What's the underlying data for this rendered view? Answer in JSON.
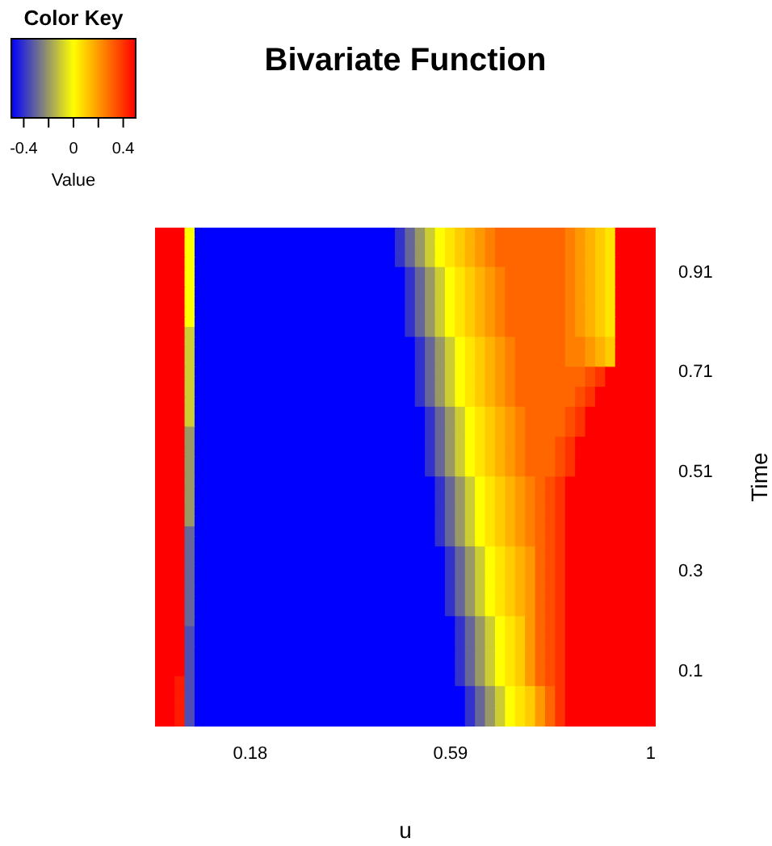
{
  "chart_data": {
    "type": "heatmap",
    "title": "Bivariate Function",
    "xlabel": "u",
    "ylabel": "Time",
    "legend_title": "Color Key",
    "clabel": "Value",
    "clim": [
      -0.5,
      0.5
    ],
    "cticks": [
      -0.4,
      {
        "value": -0.2,
        "label": null
      },
      0,
      {
        "value": 0.2,
        "label": null
      },
      0.4
    ],
    "categories": [
      null,
      null,
      null,
      null,
      null,
      null,
      null,
      null,
      null,
      "0.18",
      null,
      null,
      null,
      null,
      null,
      null,
      null,
      null,
      null,
      null,
      null,
      null,
      null,
      null,
      null,
      null,
      null,
      null,
      null,
      "0.59",
      null,
      null,
      null,
      null,
      null,
      null,
      null,
      null,
      null,
      null,
      null,
      null,
      null,
      null,
      null,
      null,
      null,
      null,
      null,
      "1"
    ],
    "y_categories": [
      null,
      null,
      null,
      null,
      "0.91",
      null,
      null,
      null,
      null,
      null,
      null,
      null,
      null,
      null,
      "0.71",
      null,
      null,
      null,
      null,
      null,
      null,
      null,
      null,
      null,
      "0.51",
      null,
      null,
      null,
      null,
      null,
      null,
      null,
      null,
      null,
      "0.3",
      null,
      null,
      null,
      null,
      null,
      null,
      null,
      null,
      null,
      "0.1",
      null,
      null,
      null,
      null,
      null
    ],
    "cells": [
      [
        0.5,
        0.5,
        0.5,
        0,
        -0.5,
        -0.5,
        -0.5,
        -0.5,
        -0.5,
        -0.5,
        -0.5,
        -0.5,
        -0.5,
        -0.5,
        -0.5,
        -0.5,
        -0.5,
        -0.5,
        -0.5,
        -0.5,
        -0.5,
        -0.5,
        -0.5,
        -0.5,
        -0.4,
        -0.3,
        -0.2,
        -0.1,
        0,
        0.05,
        0.1,
        0.15,
        0.2,
        0.25,
        0.3,
        0.3,
        0.3,
        0.3,
        0.3,
        0.3,
        0.3,
        0.25,
        0.2,
        0.15,
        0.1,
        0.05,
        0.5,
        0.5,
        0.5,
        0.5
      ],
      [
        0.5,
        0.5,
        0.5,
        0,
        -0.5,
        -0.5,
        -0.5,
        -0.5,
        -0.5,
        -0.5,
        -0.5,
        -0.5,
        -0.5,
        -0.5,
        -0.5,
        -0.5,
        -0.5,
        -0.5,
        -0.5,
        -0.5,
        -0.5,
        -0.5,
        -0.5,
        -0.5,
        -0.4,
        -0.3,
        -0.2,
        -0.1,
        0,
        0.05,
        0.1,
        0.15,
        0.2,
        0.25,
        0.3,
        0.3,
        0.3,
        0.3,
        0.3,
        0.3,
        0.3,
        0.25,
        0.2,
        0.15,
        0.1,
        0.05,
        0.5,
        0.5,
        0.5,
        0.5
      ],
      [
        0.5,
        0.5,
        0.5,
        0,
        -0.5,
        -0.5,
        -0.5,
        -0.5,
        -0.5,
        -0.5,
        -0.5,
        -0.5,
        -0.5,
        -0.5,
        -0.5,
        -0.5,
        -0.5,
        -0.5,
        -0.5,
        -0.5,
        -0.5,
        -0.5,
        -0.5,
        -0.5,
        -0.4,
        -0.3,
        -0.2,
        -0.1,
        0,
        0.05,
        0.1,
        0.15,
        0.2,
        0.25,
        0.3,
        0.3,
        0.3,
        0.3,
        0.3,
        0.3,
        0.3,
        0.25,
        0.2,
        0.15,
        0.1,
        0.05,
        0.5,
        0.5,
        0.5,
        0.5
      ],
      [
        0.5,
        0.5,
        0.5,
        0,
        -0.5,
        -0.5,
        -0.5,
        -0.5,
        -0.5,
        -0.5,
        -0.5,
        -0.5,
        -0.5,
        -0.5,
        -0.5,
        -0.5,
        -0.5,
        -0.5,
        -0.5,
        -0.5,
        -0.5,
        -0.5,
        -0.5,
        -0.5,
        -0.4,
        -0.3,
        -0.2,
        -0.1,
        0,
        0.05,
        0.1,
        0.15,
        0.2,
        0.25,
        0.3,
        0.3,
        0.3,
        0.3,
        0.3,
        0.3,
        0.3,
        0.25,
        0.2,
        0.15,
        0.1,
        0.05,
        0.5,
        0.5,
        0.5,
        0.5
      ],
      [
        0.5,
        0.5,
        0.5,
        0,
        -0.5,
        -0.5,
        -0.5,
        -0.5,
        -0.5,
        -0.5,
        -0.5,
        -0.5,
        -0.5,
        -0.5,
        -0.5,
        -0.5,
        -0.5,
        -0.5,
        -0.5,
        -0.5,
        -0.5,
        -0.5,
        -0.5,
        -0.5,
        -0.5,
        -0.4,
        -0.3,
        -0.2,
        -0.1,
        0,
        0.05,
        0.1,
        0.15,
        0.2,
        0.25,
        0.3,
        0.3,
        0.3,
        0.3,
        0.3,
        0.3,
        0.25,
        0.2,
        0.15,
        0.1,
        0.05,
        0.5,
        0.5,
        0.5,
        0.5
      ],
      [
        0.5,
        0.5,
        0.5,
        0,
        -0.5,
        -0.5,
        -0.5,
        -0.5,
        -0.5,
        -0.5,
        -0.5,
        -0.5,
        -0.5,
        -0.5,
        -0.5,
        -0.5,
        -0.5,
        -0.5,
        -0.5,
        -0.5,
        -0.5,
        -0.5,
        -0.5,
        -0.5,
        -0.5,
        -0.4,
        -0.3,
        -0.2,
        -0.1,
        0,
        0.05,
        0.1,
        0.15,
        0.2,
        0.25,
        0.3,
        0.3,
        0.3,
        0.3,
        0.3,
        0.3,
        0.25,
        0.2,
        0.15,
        0.1,
        0.05,
        0.5,
        0.5,
        0.5,
        0.5
      ],
      [
        0.5,
        0.5,
        0.5,
        0,
        -0.5,
        -0.5,
        -0.5,
        -0.5,
        -0.5,
        -0.5,
        -0.5,
        -0.5,
        -0.5,
        -0.5,
        -0.5,
        -0.5,
        -0.5,
        -0.5,
        -0.5,
        -0.5,
        -0.5,
        -0.5,
        -0.5,
        -0.5,
        -0.5,
        -0.4,
        -0.3,
        -0.2,
        -0.1,
        0,
        0.05,
        0.1,
        0.15,
        0.2,
        0.25,
        0.3,
        0.3,
        0.3,
        0.3,
        0.3,
        0.3,
        0.25,
        0.2,
        0.15,
        0.1,
        0.05,
        0.5,
        0.5,
        0.5,
        0.5
      ],
      [
        0.5,
        0.5,
        0.5,
        0,
        -0.5,
        -0.5,
        -0.5,
        -0.5,
        -0.5,
        -0.5,
        -0.5,
        -0.5,
        -0.5,
        -0.5,
        -0.5,
        -0.5,
        -0.5,
        -0.5,
        -0.5,
        -0.5,
        -0.5,
        -0.5,
        -0.5,
        -0.5,
        -0.5,
        -0.4,
        -0.3,
        -0.2,
        -0.1,
        0,
        0.05,
        0.1,
        0.15,
        0.2,
        0.25,
        0.3,
        0.3,
        0.3,
        0.3,
        0.3,
        0.3,
        0.25,
        0.2,
        0.15,
        0.1,
        0.05,
        0.5,
        0.5,
        0.5,
        0.5
      ],
      [
        0.5,
        0.5,
        0.5,
        0,
        -0.5,
        -0.5,
        -0.5,
        -0.5,
        -0.5,
        -0.5,
        -0.5,
        -0.5,
        -0.5,
        -0.5,
        -0.5,
        -0.5,
        -0.5,
        -0.5,
        -0.5,
        -0.5,
        -0.5,
        -0.5,
        -0.5,
        -0.5,
        -0.5,
        -0.4,
        -0.3,
        -0.2,
        -0.1,
        0,
        0.05,
        0.1,
        0.15,
        0.2,
        0.25,
        0.3,
        0.3,
        0.3,
        0.3,
        0.3,
        0.3,
        0.25,
        0.2,
        0.15,
        0.1,
        0.05,
        0.5,
        0.5,
        0.5,
        0.5
      ],
      [
        0.5,
        0.5,
        0.5,
        0,
        -0.5,
        -0.5,
        -0.5,
        -0.5,
        -0.5,
        -0.5,
        -0.5,
        -0.5,
        -0.5,
        -0.5,
        -0.5,
        -0.5,
        -0.5,
        -0.5,
        -0.5,
        -0.5,
        -0.5,
        -0.5,
        -0.5,
        -0.5,
        -0.5,
        -0.4,
        -0.3,
        -0.2,
        -0.1,
        0,
        0.05,
        0.1,
        0.15,
        0.2,
        0.25,
        0.3,
        0.3,
        0.3,
        0.3,
        0.3,
        0.3,
        0.25,
        0.2,
        0.15,
        0.1,
        0.05,
        0.5,
        0.5,
        0.5,
        0.5
      ],
      [
        0.5,
        0.5,
        0.5,
        -0.1,
        -0.5,
        -0.5,
        -0.5,
        -0.5,
        -0.5,
        -0.5,
        -0.5,
        -0.5,
        -0.5,
        -0.5,
        -0.5,
        -0.5,
        -0.5,
        -0.5,
        -0.5,
        -0.5,
        -0.5,
        -0.5,
        -0.5,
        -0.5,
        -0.5,
        -0.4,
        -0.3,
        -0.2,
        -0.1,
        0,
        0.05,
        0.1,
        0.15,
        0.2,
        0.25,
        0.3,
        0.3,
        0.3,
        0.3,
        0.3,
        0.3,
        0.25,
        0.2,
        0.15,
        0.1,
        0.05,
        0.5,
        0.5,
        0.5,
        0.5
      ],
      [
        0.5,
        0.5,
        0.5,
        -0.1,
        -0.5,
        -0.5,
        -0.5,
        -0.5,
        -0.5,
        -0.5,
        -0.5,
        -0.5,
        -0.5,
        -0.5,
        -0.5,
        -0.5,
        -0.5,
        -0.5,
        -0.5,
        -0.5,
        -0.5,
        -0.5,
        -0.5,
        -0.5,
        -0.5,
        -0.5,
        -0.4,
        -0.3,
        -0.2,
        -0.1,
        0,
        0.05,
        0.1,
        0.15,
        0.2,
        0.25,
        0.3,
        0.3,
        0.3,
        0.3,
        0.3,
        0.25,
        0.25,
        0.2,
        0.15,
        0.1,
        0.5,
        0.5,
        0.5,
        0.5
      ],
      [
        0.5,
        0.5,
        0.5,
        -0.1,
        -0.5,
        -0.5,
        -0.5,
        -0.5,
        -0.5,
        -0.5,
        -0.5,
        -0.5,
        -0.5,
        -0.5,
        -0.5,
        -0.5,
        -0.5,
        -0.5,
        -0.5,
        -0.5,
        -0.5,
        -0.5,
        -0.5,
        -0.5,
        -0.5,
        -0.5,
        -0.4,
        -0.3,
        -0.2,
        -0.1,
        0,
        0.05,
        0.1,
        0.15,
        0.2,
        0.25,
        0.3,
        0.3,
        0.3,
        0.3,
        0.3,
        0.25,
        0.25,
        0.2,
        0.15,
        0.1,
        0.5,
        0.5,
        0.5,
        0.5
      ],
      [
        0.5,
        0.5,
        0.5,
        -0.1,
        -0.5,
        -0.5,
        -0.5,
        -0.5,
        -0.5,
        -0.5,
        -0.5,
        -0.5,
        -0.5,
        -0.5,
        -0.5,
        -0.5,
        -0.5,
        -0.5,
        -0.5,
        -0.5,
        -0.5,
        -0.5,
        -0.5,
        -0.5,
        -0.5,
        -0.5,
        -0.4,
        -0.3,
        -0.2,
        -0.1,
        0,
        0.05,
        0.1,
        0.15,
        0.2,
        0.25,
        0.3,
        0.3,
        0.3,
        0.3,
        0.3,
        0.25,
        0.25,
        0.2,
        0.15,
        0.1,
        0.5,
        0.5,
        0.5,
        0.5
      ],
      [
        0.5,
        0.5,
        0.5,
        -0.1,
        -0.5,
        -0.5,
        -0.5,
        -0.5,
        -0.5,
        -0.5,
        -0.5,
        -0.5,
        -0.5,
        -0.5,
        -0.5,
        -0.5,
        -0.5,
        -0.5,
        -0.5,
        -0.5,
        -0.5,
        -0.5,
        -0.5,
        -0.5,
        -0.5,
        -0.5,
        -0.4,
        -0.3,
        -0.2,
        -0.1,
        0,
        0.05,
        0.1,
        0.15,
        0.2,
        0.25,
        0.3,
        0.3,
        0.3,
        0.3,
        0.3,
        0.3,
        0.3,
        0.35,
        0.4,
        0.5,
        0.5,
        0.5,
        0.5,
        0.5
      ],
      [
        0.5,
        0.5,
        0.5,
        -0.1,
        -0.5,
        -0.5,
        -0.5,
        -0.5,
        -0.5,
        -0.5,
        -0.5,
        -0.5,
        -0.5,
        -0.5,
        -0.5,
        -0.5,
        -0.5,
        -0.5,
        -0.5,
        -0.5,
        -0.5,
        -0.5,
        -0.5,
        -0.5,
        -0.5,
        -0.5,
        -0.4,
        -0.3,
        -0.2,
        -0.1,
        0,
        0.05,
        0.1,
        0.15,
        0.2,
        0.25,
        0.3,
        0.3,
        0.3,
        0.3,
        0.3,
        0.3,
        0.3,
        0.35,
        0.4,
        0.5,
        0.5,
        0.5,
        0.5,
        0.5
      ],
      [
        0.5,
        0.5,
        0.5,
        -0.1,
        -0.5,
        -0.5,
        -0.5,
        -0.5,
        -0.5,
        -0.5,
        -0.5,
        -0.5,
        -0.5,
        -0.5,
        -0.5,
        -0.5,
        -0.5,
        -0.5,
        -0.5,
        -0.5,
        -0.5,
        -0.5,
        -0.5,
        -0.5,
        -0.5,
        -0.5,
        -0.4,
        -0.3,
        -0.2,
        -0.1,
        0,
        0.05,
        0.1,
        0.15,
        0.2,
        0.25,
        0.3,
        0.3,
        0.3,
        0.3,
        0.3,
        0.3,
        0.35,
        0.4,
        0.5,
        0.5,
        0.5,
        0.5,
        0.5,
        0.5
      ],
      [
        0.5,
        0.5,
        0.5,
        -0.1,
        -0.5,
        -0.5,
        -0.5,
        -0.5,
        -0.5,
        -0.5,
        -0.5,
        -0.5,
        -0.5,
        -0.5,
        -0.5,
        -0.5,
        -0.5,
        -0.5,
        -0.5,
        -0.5,
        -0.5,
        -0.5,
        -0.5,
        -0.5,
        -0.5,
        -0.5,
        -0.4,
        -0.3,
        -0.2,
        -0.1,
        0,
        0.05,
        0.1,
        0.15,
        0.2,
        0.25,
        0.3,
        0.3,
        0.3,
        0.3,
        0.3,
        0.3,
        0.35,
        0.4,
        0.5,
        0.5,
        0.5,
        0.5,
        0.5,
        0.5
      ],
      [
        0.5,
        0.5,
        0.5,
        -0.1,
        -0.5,
        -0.5,
        -0.5,
        -0.5,
        -0.5,
        -0.5,
        -0.5,
        -0.5,
        -0.5,
        -0.5,
        -0.5,
        -0.5,
        -0.5,
        -0.5,
        -0.5,
        -0.5,
        -0.5,
        -0.5,
        -0.5,
        -0.5,
        -0.5,
        -0.5,
        -0.5,
        -0.4,
        -0.3,
        -0.2,
        -0.1,
        0,
        0.05,
        0.1,
        0.15,
        0.2,
        0.25,
        0.3,
        0.3,
        0.3,
        0.3,
        0.35,
        0.4,
        0.5,
        0.5,
        0.5,
        0.5,
        0.5,
        0.5,
        0.5
      ],
      [
        0.5,
        0.5,
        0.5,
        -0.1,
        -0.5,
        -0.5,
        -0.5,
        -0.5,
        -0.5,
        -0.5,
        -0.5,
        -0.5,
        -0.5,
        -0.5,
        -0.5,
        -0.5,
        -0.5,
        -0.5,
        -0.5,
        -0.5,
        -0.5,
        -0.5,
        -0.5,
        -0.5,
        -0.5,
        -0.5,
        -0.5,
        -0.4,
        -0.3,
        -0.2,
        -0.1,
        0,
        0.05,
        0.1,
        0.15,
        0.2,
        0.25,
        0.3,
        0.3,
        0.3,
        0.3,
        0.35,
        0.4,
        0.5,
        0.5,
        0.5,
        0.5,
        0.5,
        0.5,
        0.5
      ],
      [
        0.5,
        0.5,
        0.5,
        -0.2,
        -0.5,
        -0.5,
        -0.5,
        -0.5,
        -0.5,
        -0.5,
        -0.5,
        -0.5,
        -0.5,
        -0.5,
        -0.5,
        -0.5,
        -0.5,
        -0.5,
        -0.5,
        -0.5,
        -0.5,
        -0.5,
        -0.5,
        -0.5,
        -0.5,
        -0.5,
        -0.5,
        -0.4,
        -0.3,
        -0.2,
        -0.1,
        0,
        0.05,
        0.1,
        0.15,
        0.2,
        0.25,
        0.3,
        0.3,
        0.3,
        0.3,
        0.35,
        0.4,
        0.5,
        0.5,
        0.5,
        0.5,
        0.5,
        0.5,
        0.5
      ],
      [
        0.5,
        0.5,
        0.5,
        -0.2,
        -0.5,
        -0.5,
        -0.5,
        -0.5,
        -0.5,
        -0.5,
        -0.5,
        -0.5,
        -0.5,
        -0.5,
        -0.5,
        -0.5,
        -0.5,
        -0.5,
        -0.5,
        -0.5,
        -0.5,
        -0.5,
        -0.5,
        -0.5,
        -0.5,
        -0.5,
        -0.5,
        -0.4,
        -0.3,
        -0.2,
        -0.1,
        0,
        0.05,
        0.1,
        0.15,
        0.2,
        0.25,
        0.3,
        0.3,
        0.3,
        0.35,
        0.4,
        0.5,
        0.5,
        0.5,
        0.5,
        0.5,
        0.5,
        0.5,
        0.5
      ],
      [
        0.5,
        0.5,
        0.5,
        -0.2,
        -0.5,
        -0.5,
        -0.5,
        -0.5,
        -0.5,
        -0.5,
        -0.5,
        -0.5,
        -0.5,
        -0.5,
        -0.5,
        -0.5,
        -0.5,
        -0.5,
        -0.5,
        -0.5,
        -0.5,
        -0.5,
        -0.5,
        -0.5,
        -0.5,
        -0.5,
        -0.5,
        -0.4,
        -0.3,
        -0.2,
        -0.1,
        0,
        0.05,
        0.1,
        0.15,
        0.2,
        0.25,
        0.3,
        0.3,
        0.3,
        0.35,
        0.4,
        0.5,
        0.5,
        0.5,
        0.5,
        0.5,
        0.5,
        0.5,
        0.5
      ],
      [
        0.5,
        0.5,
        0.5,
        -0.2,
        -0.5,
        -0.5,
        -0.5,
        -0.5,
        -0.5,
        -0.5,
        -0.5,
        -0.5,
        -0.5,
        -0.5,
        -0.5,
        -0.5,
        -0.5,
        -0.5,
        -0.5,
        -0.5,
        -0.5,
        -0.5,
        -0.5,
        -0.5,
        -0.5,
        -0.5,
        -0.5,
        -0.4,
        -0.3,
        -0.2,
        -0.1,
        0,
        0.05,
        0.1,
        0.15,
        0.2,
        0.25,
        0.3,
        0.3,
        0.3,
        0.35,
        0.4,
        0.5,
        0.5,
        0.5,
        0.5,
        0.5,
        0.5,
        0.5,
        0.5
      ],
      [
        0.5,
        0.5,
        0.5,
        -0.2,
        -0.5,
        -0.5,
        -0.5,
        -0.5,
        -0.5,
        -0.5,
        -0.5,
        -0.5,
        -0.5,
        -0.5,
        -0.5,
        -0.5,
        -0.5,
        -0.5,
        -0.5,
        -0.5,
        -0.5,
        -0.5,
        -0.5,
        -0.5,
        -0.5,
        -0.5,
        -0.5,
        -0.4,
        -0.3,
        -0.2,
        -0.1,
        0,
        0.05,
        0.1,
        0.15,
        0.2,
        0.25,
        0.3,
        0.3,
        0.3,
        0.35,
        0.4,
        0.5,
        0.5,
        0.5,
        0.5,
        0.5,
        0.5,
        0.5,
        0.5
      ],
      [
        0.5,
        0.5,
        0.5,
        -0.2,
        -0.5,
        -0.5,
        -0.5,
        -0.5,
        -0.5,
        -0.5,
        -0.5,
        -0.5,
        -0.5,
        -0.5,
        -0.5,
        -0.5,
        -0.5,
        -0.5,
        -0.5,
        -0.5,
        -0.5,
        -0.5,
        -0.5,
        -0.5,
        -0.5,
        -0.5,
        -0.5,
        -0.5,
        -0.4,
        -0.3,
        -0.2,
        -0.1,
        0,
        0.05,
        0.1,
        0.15,
        0.2,
        0.25,
        0.3,
        0.35,
        0.4,
        0.5,
        0.5,
        0.5,
        0.5,
        0.5,
        0.5,
        0.5,
        0.5,
        0.5
      ],
      [
        0.5,
        0.5,
        0.5,
        -0.2,
        -0.5,
        -0.5,
        -0.5,
        -0.5,
        -0.5,
        -0.5,
        -0.5,
        -0.5,
        -0.5,
        -0.5,
        -0.5,
        -0.5,
        -0.5,
        -0.5,
        -0.5,
        -0.5,
        -0.5,
        -0.5,
        -0.5,
        -0.5,
        -0.5,
        -0.5,
        -0.5,
        -0.5,
        -0.4,
        -0.3,
        -0.2,
        -0.1,
        0,
        0.05,
        0.1,
        0.15,
        0.2,
        0.25,
        0.3,
        0.35,
        0.4,
        0.5,
        0.5,
        0.5,
        0.5,
        0.5,
        0.5,
        0.5,
        0.5,
        0.5
      ],
      [
        0.5,
        0.5,
        0.5,
        -0.2,
        -0.5,
        -0.5,
        -0.5,
        -0.5,
        -0.5,
        -0.5,
        -0.5,
        -0.5,
        -0.5,
        -0.5,
        -0.5,
        -0.5,
        -0.5,
        -0.5,
        -0.5,
        -0.5,
        -0.5,
        -0.5,
        -0.5,
        -0.5,
        -0.5,
        -0.5,
        -0.5,
        -0.5,
        -0.4,
        -0.3,
        -0.2,
        -0.1,
        0,
        0.05,
        0.1,
        0.15,
        0.2,
        0.25,
        0.3,
        0.35,
        0.4,
        0.5,
        0.5,
        0.5,
        0.5,
        0.5,
        0.5,
        0.5,
        0.5,
        0.5
      ],
      [
        0.5,
        0.5,
        0.5,
        -0.2,
        -0.5,
        -0.5,
        -0.5,
        -0.5,
        -0.5,
        -0.5,
        -0.5,
        -0.5,
        -0.5,
        -0.5,
        -0.5,
        -0.5,
        -0.5,
        -0.5,
        -0.5,
        -0.5,
        -0.5,
        -0.5,
        -0.5,
        -0.5,
        -0.5,
        -0.5,
        -0.5,
        -0.5,
        -0.4,
        -0.3,
        -0.2,
        -0.1,
        0,
        0.05,
        0.1,
        0.15,
        0.2,
        0.25,
        0.3,
        0.35,
        0.4,
        0.5,
        0.5,
        0.5,
        0.5,
        0.5,
        0.5,
        0.5,
        0.5,
        0.5
      ],
      [
        0.5,
        0.5,
        0.5,
        -0.2,
        -0.5,
        -0.5,
        -0.5,
        -0.5,
        -0.5,
        -0.5,
        -0.5,
        -0.5,
        -0.5,
        -0.5,
        -0.5,
        -0.5,
        -0.5,
        -0.5,
        -0.5,
        -0.5,
        -0.5,
        -0.5,
        -0.5,
        -0.5,
        -0.5,
        -0.5,
        -0.5,
        -0.5,
        -0.4,
        -0.3,
        -0.2,
        -0.1,
        0,
        0.05,
        0.1,
        0.15,
        0.2,
        0.25,
        0.3,
        0.35,
        0.4,
        0.5,
        0.5,
        0.5,
        0.5,
        0.5,
        0.5,
        0.5,
        0.5,
        0.5
      ],
      [
        0.5,
        0.5,
        0.5,
        -0.3,
        -0.5,
        -0.5,
        -0.5,
        -0.5,
        -0.5,
        -0.5,
        -0.5,
        -0.5,
        -0.5,
        -0.5,
        -0.5,
        -0.5,
        -0.5,
        -0.5,
        -0.5,
        -0.5,
        -0.5,
        -0.5,
        -0.5,
        -0.5,
        -0.5,
        -0.5,
        -0.5,
        -0.5,
        -0.4,
        -0.3,
        -0.2,
        -0.1,
        0,
        0.05,
        0.1,
        0.15,
        0.2,
        0.25,
        0.3,
        0.35,
        0.4,
        0.5,
        0.5,
        0.5,
        0.5,
        0.5,
        0.5,
        0.5,
        0.5,
        0.5
      ],
      [
        0.5,
        0.5,
        0.5,
        -0.3,
        -0.5,
        -0.5,
        -0.5,
        -0.5,
        -0.5,
        -0.5,
        -0.5,
        -0.5,
        -0.5,
        -0.5,
        -0.5,
        -0.5,
        -0.5,
        -0.5,
        -0.5,
        -0.5,
        -0.5,
        -0.5,
        -0.5,
        -0.5,
        -0.5,
        -0.5,
        -0.5,
        -0.5,
        -0.4,
        -0.3,
        -0.2,
        -0.1,
        0,
        0.05,
        0.1,
        0.15,
        0.2,
        0.25,
        0.3,
        0.35,
        0.4,
        0.5,
        0.5,
        0.5,
        0.5,
        0.5,
        0.5,
        0.5,
        0.5,
        0.5
      ],
      [
        0.5,
        0.5,
        0.5,
        -0.3,
        -0.5,
        -0.5,
        -0.5,
        -0.5,
        -0.5,
        -0.5,
        -0.5,
        -0.5,
        -0.5,
        -0.5,
        -0.5,
        -0.5,
        -0.5,
        -0.5,
        -0.5,
        -0.5,
        -0.5,
        -0.5,
        -0.5,
        -0.5,
        -0.5,
        -0.5,
        -0.5,
        -0.5,
        -0.5,
        -0.4,
        -0.3,
        -0.2,
        -0.1,
        0,
        0.05,
        0.1,
        0.15,
        0.2,
        0.3,
        0.35,
        0.4,
        0.5,
        0.5,
        0.5,
        0.5,
        0.5,
        0.5,
        0.5,
        0.5,
        0.5
      ],
      [
        0.5,
        0.5,
        0.5,
        -0.3,
        -0.5,
        -0.5,
        -0.5,
        -0.5,
        -0.5,
        -0.5,
        -0.5,
        -0.5,
        -0.5,
        -0.5,
        -0.5,
        -0.5,
        -0.5,
        -0.5,
        -0.5,
        -0.5,
        -0.5,
        -0.5,
        -0.5,
        -0.5,
        -0.5,
        -0.5,
        -0.5,
        -0.5,
        -0.5,
        -0.4,
        -0.3,
        -0.2,
        -0.1,
        0,
        0.05,
        0.1,
        0.15,
        0.2,
        0.3,
        0.35,
        0.4,
        0.5,
        0.5,
        0.5,
        0.5,
        0.5,
        0.5,
        0.5,
        0.5,
        0.5
      ],
      [
        0.5,
        0.5,
        0.5,
        -0.3,
        -0.5,
        -0.5,
        -0.5,
        -0.5,
        -0.5,
        -0.5,
        -0.5,
        -0.5,
        -0.5,
        -0.5,
        -0.5,
        -0.5,
        -0.5,
        -0.5,
        -0.5,
        -0.5,
        -0.5,
        -0.5,
        -0.5,
        -0.5,
        -0.5,
        -0.5,
        -0.5,
        -0.5,
        -0.5,
        -0.4,
        -0.3,
        -0.2,
        -0.1,
        0,
        0.05,
        0.1,
        0.15,
        0.2,
        0.3,
        0.35,
        0.4,
        0.5,
        0.5,
        0.5,
        0.5,
        0.5,
        0.5,
        0.5,
        0.5,
        0.5
      ],
      [
        0.5,
        0.5,
        0.5,
        -0.3,
        -0.5,
        -0.5,
        -0.5,
        -0.5,
        -0.5,
        -0.5,
        -0.5,
        -0.5,
        -0.5,
        -0.5,
        -0.5,
        -0.5,
        -0.5,
        -0.5,
        -0.5,
        -0.5,
        -0.5,
        -0.5,
        -0.5,
        -0.5,
        -0.5,
        -0.5,
        -0.5,
        -0.5,
        -0.5,
        -0.4,
        -0.3,
        -0.2,
        -0.1,
        0,
        0.05,
        0.1,
        0.15,
        0.2,
        0.3,
        0.35,
        0.4,
        0.5,
        0.5,
        0.5,
        0.5,
        0.5,
        0.5,
        0.5,
        0.5,
        0.5
      ],
      [
        0.5,
        0.5,
        0.5,
        -0.3,
        -0.5,
        -0.5,
        -0.5,
        -0.5,
        -0.5,
        -0.5,
        -0.5,
        -0.5,
        -0.5,
        -0.5,
        -0.5,
        -0.5,
        -0.5,
        -0.5,
        -0.5,
        -0.5,
        -0.5,
        -0.5,
        -0.5,
        -0.5,
        -0.5,
        -0.5,
        -0.5,
        -0.5,
        -0.5,
        -0.4,
        -0.3,
        -0.2,
        -0.1,
        0,
        0.05,
        0.1,
        0.15,
        0.2,
        0.3,
        0.35,
        0.4,
        0.5,
        0.5,
        0.5,
        0.5,
        0.5,
        0.5,
        0.5,
        0.5,
        0.5
      ],
      [
        0.5,
        0.5,
        0.5,
        -0.3,
        -0.5,
        -0.5,
        -0.5,
        -0.5,
        -0.5,
        -0.5,
        -0.5,
        -0.5,
        -0.5,
        -0.5,
        -0.5,
        -0.5,
        -0.5,
        -0.5,
        -0.5,
        -0.5,
        -0.5,
        -0.5,
        -0.5,
        -0.5,
        -0.5,
        -0.5,
        -0.5,
        -0.5,
        -0.5,
        -0.4,
        -0.3,
        -0.2,
        -0.1,
        0,
        0.05,
        0.1,
        0.15,
        0.2,
        0.3,
        0.35,
        0.4,
        0.5,
        0.5,
        0.5,
        0.5,
        0.5,
        0.5,
        0.5,
        0.5,
        0.5
      ],
      [
        0.5,
        0.5,
        0.5,
        -0.3,
        -0.5,
        -0.5,
        -0.5,
        -0.5,
        -0.5,
        -0.5,
        -0.5,
        -0.5,
        -0.5,
        -0.5,
        -0.5,
        -0.5,
        -0.5,
        -0.5,
        -0.5,
        -0.5,
        -0.5,
        -0.5,
        -0.5,
        -0.5,
        -0.5,
        -0.5,
        -0.5,
        -0.5,
        -0.5,
        -0.4,
        -0.3,
        -0.2,
        -0.1,
        0,
        0.05,
        0.1,
        0.15,
        0.2,
        0.3,
        0.35,
        0.4,
        0.5,
        0.5,
        0.5,
        0.5,
        0.5,
        0.5,
        0.5,
        0.5,
        0.5
      ],
      [
        0.5,
        0.5,
        0.5,
        -0.3,
        -0.5,
        -0.5,
        -0.5,
        -0.5,
        -0.5,
        -0.5,
        -0.5,
        -0.5,
        -0.5,
        -0.5,
        -0.5,
        -0.5,
        -0.5,
        -0.5,
        -0.5,
        -0.5,
        -0.5,
        -0.5,
        -0.5,
        -0.5,
        -0.5,
        -0.5,
        -0.5,
        -0.5,
        -0.5,
        -0.5,
        -0.4,
        -0.3,
        -0.2,
        -0.1,
        0,
        0.05,
        0.1,
        0.2,
        0.3,
        0.35,
        0.4,
        0.5,
        0.5,
        0.5,
        0.5,
        0.5,
        0.5,
        0.5,
        0.5,
        0.5
      ],
      [
        0.5,
        0.5,
        0.5,
        -0.35,
        -0.5,
        -0.5,
        -0.5,
        -0.5,
        -0.5,
        -0.5,
        -0.5,
        -0.5,
        -0.5,
        -0.5,
        -0.5,
        -0.5,
        -0.5,
        -0.5,
        -0.5,
        -0.5,
        -0.5,
        -0.5,
        -0.5,
        -0.5,
        -0.5,
        -0.5,
        -0.5,
        -0.5,
        -0.5,
        -0.5,
        -0.4,
        -0.3,
        -0.2,
        -0.1,
        0,
        0.05,
        0.1,
        0.2,
        0.3,
        0.35,
        0.4,
        0.5,
        0.5,
        0.5,
        0.5,
        0.5,
        0.5,
        0.5,
        0.5,
        0.5
      ],
      [
        0.5,
        0.5,
        0.5,
        -0.35,
        -0.5,
        -0.5,
        -0.5,
        -0.5,
        -0.5,
        -0.5,
        -0.5,
        -0.5,
        -0.5,
        -0.5,
        -0.5,
        -0.5,
        -0.5,
        -0.5,
        -0.5,
        -0.5,
        -0.5,
        -0.5,
        -0.5,
        -0.5,
        -0.5,
        -0.5,
        -0.5,
        -0.5,
        -0.5,
        -0.5,
        -0.4,
        -0.3,
        -0.2,
        -0.1,
        0,
        0.05,
        0.1,
        0.2,
        0.3,
        0.35,
        0.4,
        0.5,
        0.5,
        0.5,
        0.5,
        0.5,
        0.5,
        0.5,
        0.5,
        0.5
      ],
      [
        0.5,
        0.5,
        0.5,
        -0.35,
        -0.5,
        -0.5,
        -0.5,
        -0.5,
        -0.5,
        -0.5,
        -0.5,
        -0.5,
        -0.5,
        -0.5,
        -0.5,
        -0.5,
        -0.5,
        -0.5,
        -0.5,
        -0.5,
        -0.5,
        -0.5,
        -0.5,
        -0.5,
        -0.5,
        -0.5,
        -0.5,
        -0.5,
        -0.5,
        -0.5,
        -0.4,
        -0.3,
        -0.2,
        -0.1,
        0,
        0.05,
        0.1,
        0.2,
        0.3,
        0.35,
        0.4,
        0.5,
        0.5,
        0.5,
        0.5,
        0.5,
        0.5,
        0.5,
        0.5,
        0.5
      ],
      [
        0.5,
        0.5,
        0.5,
        -0.35,
        -0.5,
        -0.5,
        -0.5,
        -0.5,
        -0.5,
        -0.5,
        -0.5,
        -0.5,
        -0.5,
        -0.5,
        -0.5,
        -0.5,
        -0.5,
        -0.5,
        -0.5,
        -0.5,
        -0.5,
        -0.5,
        -0.5,
        -0.5,
        -0.5,
        -0.5,
        -0.5,
        -0.5,
        -0.5,
        -0.5,
        -0.4,
        -0.3,
        -0.2,
        -0.1,
        0,
        0.05,
        0.1,
        0.2,
        0.3,
        0.35,
        0.4,
        0.5,
        0.5,
        0.5,
        0.5,
        0.5,
        0.5,
        0.5,
        0.5,
        0.5
      ],
      [
        0.5,
        0.5,
        0.5,
        -0.35,
        -0.5,
        -0.5,
        -0.5,
        -0.5,
        -0.5,
        -0.5,
        -0.5,
        -0.5,
        -0.5,
        -0.5,
        -0.5,
        -0.5,
        -0.5,
        -0.5,
        -0.5,
        -0.5,
        -0.5,
        -0.5,
        -0.5,
        -0.5,
        -0.5,
        -0.5,
        -0.5,
        -0.5,
        -0.5,
        -0.5,
        -0.4,
        -0.3,
        -0.2,
        -0.1,
        0,
        0.05,
        0.1,
        0.2,
        0.3,
        0.35,
        0.4,
        0.5,
        0.5,
        0.5,
        0.5,
        0.5,
        0.5,
        0.5,
        0.5,
        0.5
      ],
      [
        0.5,
        0.5,
        0.45,
        -0.35,
        -0.5,
        -0.5,
        -0.5,
        -0.5,
        -0.5,
        -0.5,
        -0.5,
        -0.5,
        -0.5,
        -0.5,
        -0.5,
        -0.5,
        -0.5,
        -0.5,
        -0.5,
        -0.5,
        -0.5,
        -0.5,
        -0.5,
        -0.5,
        -0.5,
        -0.5,
        -0.5,
        -0.5,
        -0.5,
        -0.5,
        -0.4,
        -0.3,
        -0.2,
        -0.1,
        0,
        0.05,
        0.1,
        0.2,
        0.3,
        0.35,
        0.4,
        0.5,
        0.5,
        0.5,
        0.5,
        0.5,
        0.5,
        0.5,
        0.5,
        0.5
      ],
      [
        0.5,
        0.5,
        0.45,
        -0.35,
        -0.5,
        -0.5,
        -0.5,
        -0.5,
        -0.5,
        -0.5,
        -0.5,
        -0.5,
        -0.5,
        -0.5,
        -0.5,
        -0.5,
        -0.5,
        -0.5,
        -0.5,
        -0.5,
        -0.5,
        -0.5,
        -0.5,
        -0.5,
        -0.5,
        -0.5,
        -0.5,
        -0.5,
        -0.5,
        -0.5,
        -0.5,
        -0.4,
        -0.3,
        -0.2,
        -0.1,
        0,
        0.05,
        0.1,
        0.2,
        0.3,
        0.4,
        0.5,
        0.5,
        0.5,
        0.5,
        0.5,
        0.5,
        0.5,
        0.5,
        0.5
      ],
      [
        0.5,
        0.5,
        0.45,
        -0.35,
        -0.5,
        -0.5,
        -0.5,
        -0.5,
        -0.5,
        -0.5,
        -0.5,
        -0.5,
        -0.5,
        -0.5,
        -0.5,
        -0.5,
        -0.5,
        -0.5,
        -0.5,
        -0.5,
        -0.5,
        -0.5,
        -0.5,
        -0.5,
        -0.5,
        -0.5,
        -0.5,
        -0.5,
        -0.5,
        -0.5,
        -0.5,
        -0.4,
        -0.3,
        -0.2,
        -0.1,
        0,
        0.05,
        0.1,
        0.2,
        0.3,
        0.4,
        0.5,
        0.5,
        0.5,
        0.5,
        0.5,
        0.5,
        0.5,
        0.5,
        0.5
      ],
      [
        0.5,
        0.5,
        0.45,
        -0.35,
        -0.5,
        -0.5,
        -0.5,
        -0.5,
        -0.5,
        -0.5,
        -0.5,
        -0.5,
        -0.5,
        -0.5,
        -0.5,
        -0.5,
        -0.5,
        -0.5,
        -0.5,
        -0.5,
        -0.5,
        -0.5,
        -0.5,
        -0.5,
        -0.5,
        -0.5,
        -0.5,
        -0.5,
        -0.5,
        -0.5,
        -0.5,
        -0.4,
        -0.3,
        -0.2,
        -0.1,
        0,
        0.05,
        0.1,
        0.2,
        0.3,
        0.4,
        0.5,
        0.5,
        0.5,
        0.5,
        0.5,
        0.5,
        0.5,
        0.5,
        0.5
      ],
      [
        0.5,
        0.5,
        0.45,
        -0.35,
        -0.5,
        -0.5,
        -0.5,
        -0.5,
        -0.5,
        -0.5,
        -0.5,
        -0.5,
        -0.5,
        -0.5,
        -0.5,
        -0.5,
        -0.5,
        -0.5,
        -0.5,
        -0.5,
        -0.5,
        -0.5,
        -0.5,
        -0.5,
        -0.5,
        -0.5,
        -0.5,
        -0.5,
        -0.5,
        -0.5,
        -0.5,
        -0.4,
        -0.3,
        -0.2,
        -0.1,
        0,
        0.05,
        0.1,
        0.2,
        0.3,
        0.4,
        0.5,
        0.5,
        0.5,
        0.5,
        0.5,
        0.5,
        0.5,
        0.5,
        0.5
      ]
    ]
  }
}
